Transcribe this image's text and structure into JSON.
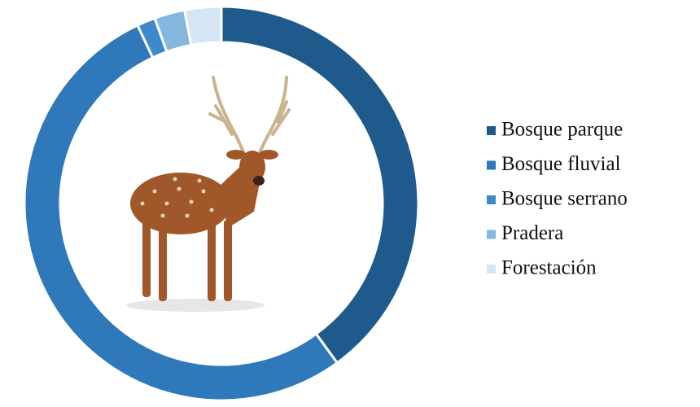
{
  "chart_data": {
    "type": "donut",
    "categories": [
      "Bosque parque",
      "Bosque fluvial",
      "Bosque serrano",
      "Pradera",
      "Forestación"
    ],
    "values": [
      40,
      53,
      1.5,
      2.5,
      3
    ],
    "colors": [
      "#1f5a8c",
      "#2f79ba",
      "#3d89c9",
      "#86b7df",
      "#d5e5f3"
    ],
    "legend": "right"
  }
}
